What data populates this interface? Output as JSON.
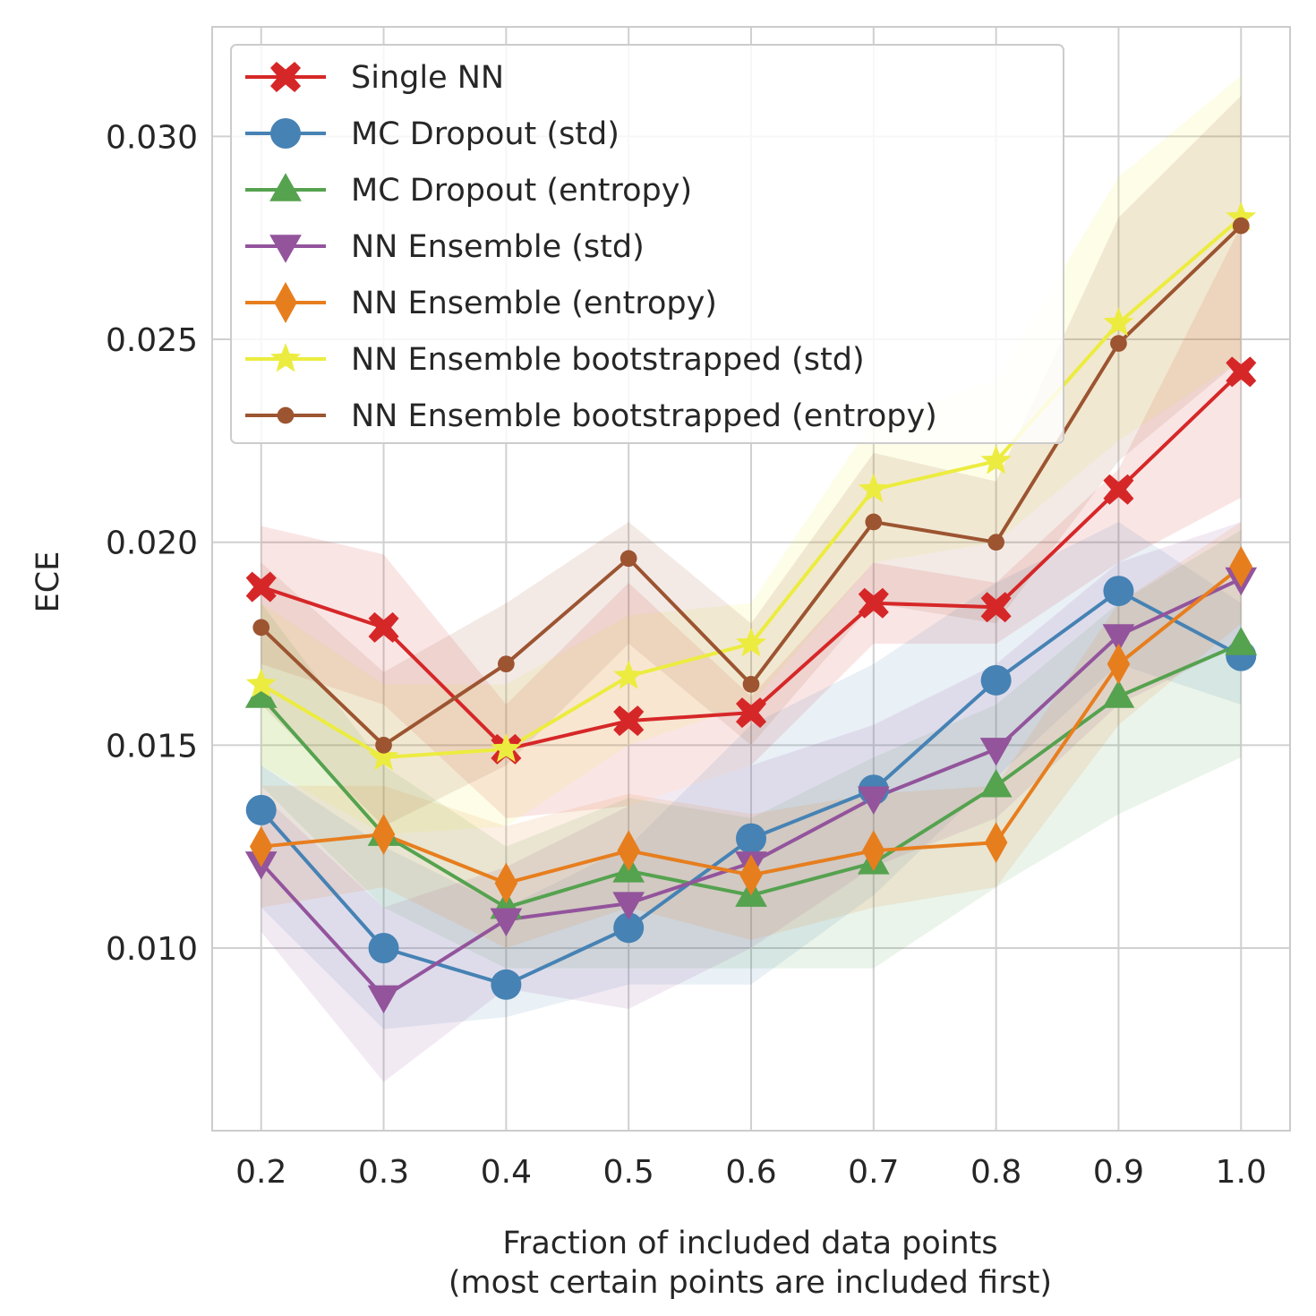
{
  "chart_data": {
    "type": "line",
    "xlabel_line1": "Fraction of included data points",
    "xlabel_line2": "(most certain points are included first)",
    "ylabel": "ECE",
    "x": [
      0.2,
      0.3,
      0.4,
      0.5,
      0.6,
      0.7,
      0.8,
      0.9,
      1.0
    ],
    "xlim": [
      0.16,
      1.04
    ],
    "ylim": [
      0.0055,
      0.0327
    ],
    "x_tick_labels": [
      "0.2",
      "0.3",
      "0.4",
      "0.5",
      "0.6",
      "0.7",
      "0.8",
      "0.9",
      "1.0"
    ],
    "y_ticks": [
      0.01,
      0.015,
      0.02,
      0.025,
      0.03
    ],
    "y_tick_labels": [
      "0.010",
      "0.015",
      "0.020",
      "0.025",
      "0.030"
    ],
    "grid": true,
    "legend_position": "top-left",
    "series": [
      {
        "name": "Single NN",
        "marker": "x-cross",
        "color": "#d62728",
        "values": [
          0.0189,
          0.0179,
          0.0149,
          0.0156,
          0.0158,
          0.0185,
          0.0184,
          0.0213,
          0.0242
        ],
        "band_low": [
          0.017,
          0.016,
          0.0132,
          0.0135,
          0.0145,
          0.0175,
          0.0175,
          0.0195,
          0.0211
        ],
        "band_high": [
          0.0204,
          0.0197,
          0.016,
          0.019,
          0.0162,
          0.0195,
          0.019,
          0.0218,
          0.0278
        ]
      },
      {
        "name": "MC Dropout (std)",
        "marker": "circle",
        "color": "#4682b4",
        "values": [
          0.0134,
          0.01,
          0.0091,
          0.0105,
          0.0127,
          0.0139,
          0.0166,
          0.0188,
          0.0172
        ],
        "band_low": [
          0.011,
          0.008,
          0.0083,
          0.0091,
          0.0091,
          0.0113,
          0.0142,
          0.017,
          0.016
        ],
        "band_high": [
          0.0145,
          0.0125,
          0.011,
          0.0125,
          0.0155,
          0.017,
          0.019,
          0.0205,
          0.0185
        ]
      },
      {
        "name": "MC Dropout (entropy)",
        "marker": "triangle-up",
        "color": "#55a24f",
        "values": [
          0.0162,
          0.0128,
          0.011,
          0.0119,
          0.0113,
          0.0121,
          0.014,
          0.0162,
          0.0175
        ],
        "band_low": [
          0.014,
          0.011,
          0.0095,
          0.0095,
          0.0095,
          0.0095,
          0.0115,
          0.0133,
          0.0147
        ],
        "band_high": [
          0.0185,
          0.0145,
          0.0125,
          0.0137,
          0.0132,
          0.0147,
          0.016,
          0.0185,
          0.0203
        ]
      },
      {
        "name": "NN Ensemble (std)",
        "marker": "triangle-down",
        "color": "#93549c",
        "values": [
          0.0121,
          0.0088,
          0.0107,
          0.0111,
          0.0121,
          0.0137,
          0.0149,
          0.0177,
          0.0191
        ],
        "band_low": [
          0.0104,
          0.0067,
          0.009,
          0.0085,
          0.01,
          0.012,
          0.0132,
          0.016,
          0.0175
        ],
        "band_high": [
          0.0138,
          0.011,
          0.012,
          0.0135,
          0.0145,
          0.0155,
          0.017,
          0.0195,
          0.0205
        ]
      },
      {
        "name": "NN Ensemble (entropy)",
        "marker": "diamond",
        "color": "#e77e1e",
        "values": [
          0.0125,
          0.0128,
          0.0116,
          0.0124,
          0.0118,
          0.0124,
          0.0126,
          0.017,
          0.0194
        ],
        "band_low": [
          0.011,
          0.0115,
          0.01,
          0.011,
          0.0102,
          0.011,
          0.0115,
          0.0155,
          0.018
        ],
        "band_high": [
          0.014,
          0.014,
          0.013,
          0.0138,
          0.0133,
          0.0138,
          0.014,
          0.0185,
          0.0205
        ]
      },
      {
        "name": "NN Ensemble bootstrapped (std)",
        "marker": "star",
        "color": "#ecec40",
        "values": [
          0.0165,
          0.0147,
          0.0149,
          0.0167,
          0.0175,
          0.0213,
          0.022,
          0.0254,
          0.028
        ],
        "band_low": [
          0.0145,
          0.0128,
          0.013,
          0.015,
          0.016,
          0.0195,
          0.02,
          0.0225,
          0.0245
        ],
        "band_high": [
          0.0185,
          0.0165,
          0.0165,
          0.0182,
          0.0185,
          0.023,
          0.024,
          0.029,
          0.0315
        ]
      },
      {
        "name": "NN Ensemble bootstrapped (entropy)",
        "marker": "small-circle",
        "color": "#9c5431",
        "values": [
          0.0179,
          0.015,
          0.017,
          0.0196,
          0.0165,
          0.0205,
          0.02,
          0.0249,
          0.0278
        ],
        "band_low": [
          0.016,
          0.013,
          0.0145,
          0.0175,
          0.015,
          0.0185,
          0.018,
          0.022,
          0.0245
        ],
        "band_high": [
          0.0195,
          0.0168,
          0.0185,
          0.0205,
          0.018,
          0.0222,
          0.0215,
          0.028,
          0.031
        ]
      }
    ]
  }
}
